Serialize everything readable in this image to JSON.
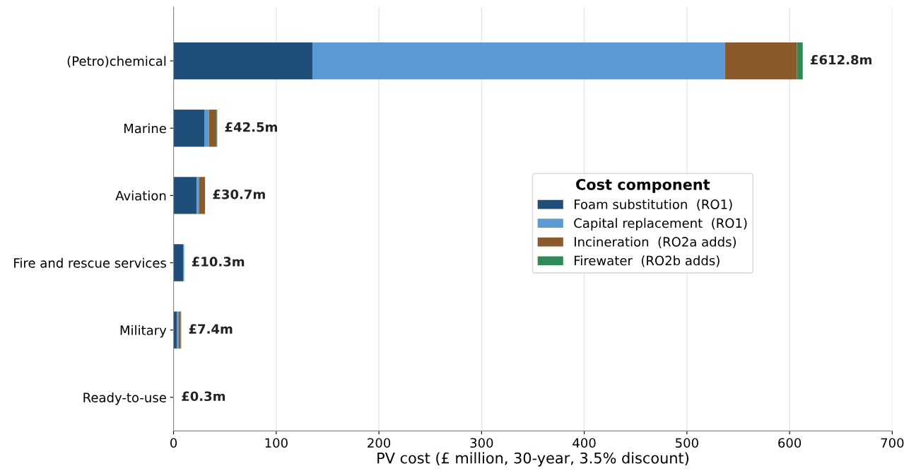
{
  "chart_data": {
    "type": "bar",
    "orientation": "horizontal",
    "stacked": true,
    "categories": [
      "(Petro)chemical",
      "Marine",
      "Aviation",
      "Fire and rescue services",
      "Military",
      "Ready-to-use"
    ],
    "series": [
      {
        "name": "Foam substitution  (RO1)",
        "color": "#1f4e79",
        "values": [
          135.2,
          30.3,
          22.5,
          9.6,
          3.4,
          0
        ]
      },
      {
        "name": "Capital replacement  (RO1)",
        "color": "#5b9bd5",
        "values": [
          402,
          4.2,
          2.1,
          0.7,
          1.6,
          0.3
        ]
      },
      {
        "name": "Incineration  (RO2a adds)",
        "color": "#8b5a2b",
        "values": [
          70,
          7.3,
          5.3,
          0,
          1.8,
          0
        ]
      },
      {
        "name": "Firewater  (RO2b adds)",
        "color": "#2e8b57",
        "values": [
          5.6,
          0.7,
          0.8,
          0,
          0.6,
          0
        ]
      }
    ],
    "totals": [
      "£612.8m",
      "£42.5m",
      "£30.7m",
      "£10.3m",
      "£7.4m",
      "£0.3m"
    ],
    "xlabel": "PV cost (£ million, 30-year, 3.5% discount)",
    "xlim": [
      0,
      700
    ],
    "xticks": [
      0,
      100,
      200,
      300,
      400,
      500,
      600,
      700
    ],
    "grid": "x",
    "legend": "right",
    "legend_title": "Cost component"
  }
}
